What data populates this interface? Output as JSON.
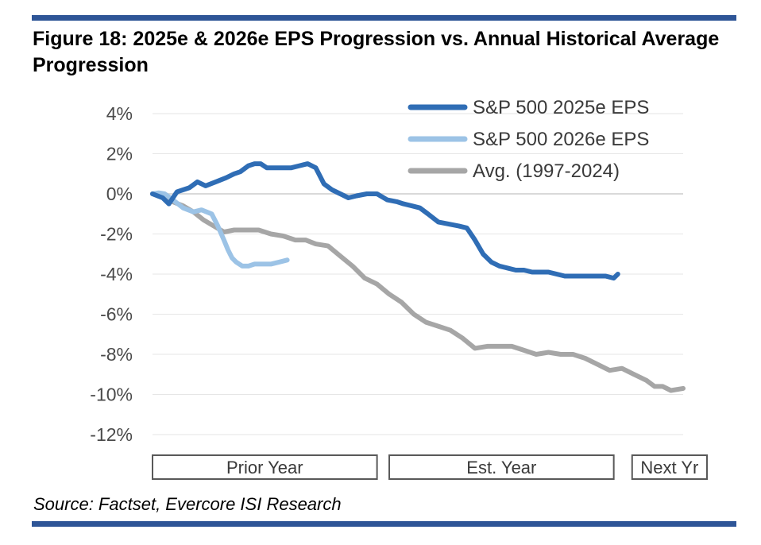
{
  "figure": {
    "title": "Figure 18:  2025e & 2026e EPS Progression vs. Annual Historical Average Progression",
    "source": "Source: Factset, Evercore ISI Research"
  },
  "colors": {
    "rule": "#2e5597",
    "series_2025": "#2f6db5",
    "series_2026": "#9cc3e6",
    "series_avg": "#a6a6a6",
    "gridline": "#e6e6e6",
    "zero_line": "#d9d9d9"
  },
  "chart_data": {
    "type": "line",
    "title": "2025e & 2026e EPS Progression vs. Annual Historical Average Progression",
    "xlabel": "",
    "ylabel": "",
    "x_range": [
      0,
      26
    ],
    "ylim": [
      -12,
      4
    ],
    "y_ticks": [
      4,
      2,
      0,
      -2,
      -4,
      -6,
      -8,
      -10,
      -12
    ],
    "y_tick_labels": [
      "4%",
      "2%",
      "0%",
      "-2%",
      "-4%",
      "-6%",
      "-8%",
      "-10%",
      "-12%"
    ],
    "x_periods": [
      {
        "label": "Prior Year",
        "start": 0,
        "end": 11
      },
      {
        "label": "Est. Year",
        "start": 11.6,
        "end": 22.6
      },
      {
        "label": "Next Yr",
        "start": 23.5,
        "end": 26
      }
    ],
    "legend_position": "top-right",
    "series": [
      {
        "name": "S&P 500 2025e EPS",
        "x": [
          0,
          0.5,
          0.8,
          1.2,
          1.8,
          2.2,
          2.6,
          3.1,
          3.6,
          4.0,
          4.3,
          4.7,
          5.0,
          5.3,
          5.6,
          5.9,
          6.3,
          6.8,
          7.2,
          7.6,
          8.0,
          8.4,
          8.8,
          9.2,
          9.6,
          10.0,
          10.5,
          11.0,
          11.5,
          12.0,
          12.3,
          12.7,
          13.1,
          13.5,
          14.0,
          14.5,
          15.0,
          15.4,
          15.8,
          16.2,
          16.6,
          17.0,
          17.4,
          17.8,
          18.2,
          18.6,
          19.0,
          19.4,
          19.8,
          20.2,
          20.6,
          21.0,
          21.4,
          21.8,
          22.2,
          22.6,
          22.8
        ],
        "values": [
          0,
          -0.2,
          -0.5,
          0.1,
          0.3,
          0.6,
          0.4,
          0.6,
          0.8,
          1.0,
          1.1,
          1.4,
          1.5,
          1.5,
          1.3,
          1.3,
          1.3,
          1.3,
          1.4,
          1.5,
          1.3,
          0.5,
          0.2,
          0.0,
          -0.2,
          -0.1,
          0.0,
          0.0,
          -0.3,
          -0.4,
          -0.5,
          -0.6,
          -0.7,
          -1.0,
          -1.4,
          -1.5,
          -1.6,
          -1.7,
          -2.3,
          -3.0,
          -3.4,
          -3.6,
          -3.7,
          -3.8,
          -3.8,
          -3.9,
          -3.9,
          -3.9,
          -4.0,
          -4.1,
          -4.1,
          -4.1,
          -4.1,
          -4.1,
          -4.1,
          -4.2,
          -4.0
        ]
      },
      {
        "name": "S&P 500 2026e EPS",
        "x": [
          0,
          0.3,
          0.6,
          1.0,
          1.5,
          2.0,
          2.4,
          2.9,
          3.2,
          3.5,
          3.7,
          3.9,
          4.1,
          4.4,
          4.7,
          5.0,
          5.4,
          5.8,
          6.2,
          6.6
        ],
        "values": [
          0,
          0.05,
          0.0,
          -0.3,
          -0.7,
          -0.9,
          -0.8,
          -1.0,
          -1.6,
          -2.3,
          -2.8,
          -3.2,
          -3.4,
          -3.6,
          -3.6,
          -3.5,
          -3.5,
          -3.5,
          -3.4,
          -3.3
        ]
      },
      {
        "name": "Avg. (1997-2024)",
        "x": [
          0,
          0.5,
          1.0,
          1.5,
          2.0,
          2.5,
          3.0,
          3.5,
          4.0,
          4.6,
          5.2,
          5.8,
          6.4,
          7.0,
          7.5,
          8.0,
          8.6,
          9.2,
          9.8,
          10.4,
          11.0,
          11.6,
          12.2,
          12.8,
          13.4,
          14.0,
          14.6,
          15.2,
          15.8,
          16.4,
          17.0,
          17.6,
          18.2,
          18.8,
          19.4,
          20.0,
          20.6,
          21.2,
          21.8,
          22.4,
          23.0,
          23.6,
          24.2,
          24.6,
          25.0,
          25.4,
          26.0
        ],
        "values": [
          0,
          -0.2,
          -0.4,
          -0.6,
          -0.9,
          -1.3,
          -1.6,
          -1.9,
          -1.8,
          -1.8,
          -1.8,
          -2.0,
          -2.1,
          -2.3,
          -2.3,
          -2.5,
          -2.6,
          -3.1,
          -3.6,
          -4.2,
          -4.5,
          -5.0,
          -5.4,
          -6.0,
          -6.4,
          -6.6,
          -6.8,
          -7.2,
          -7.7,
          -7.6,
          -7.6,
          -7.6,
          -7.8,
          -8.0,
          -7.9,
          -8.0,
          -8.0,
          -8.2,
          -8.5,
          -8.8,
          -8.7,
          -9.0,
          -9.3,
          -9.6,
          -9.6,
          -9.8,
          -9.7
        ]
      }
    ]
  }
}
